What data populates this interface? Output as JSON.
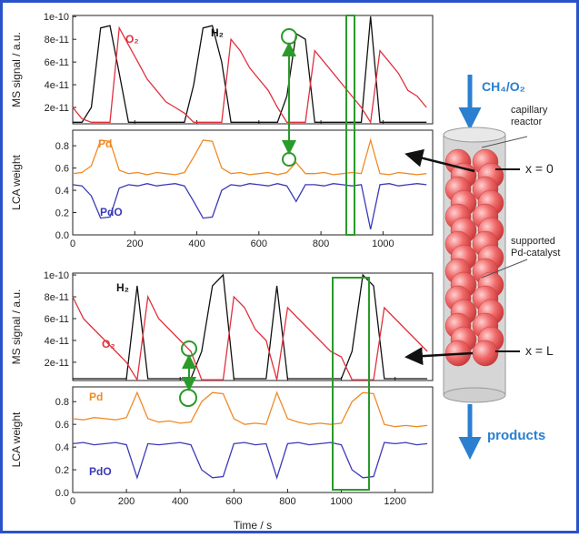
{
  "chart_data": [
    {
      "type": "line",
      "ylabel": "MS signal / a.u.",
      "xlim": [
        0,
        1160
      ],
      "ylim": [
        5.6e-12,
        1.01e-10
      ],
      "xticks": [
        0,
        200,
        400,
        600,
        800,
        1000
      ],
      "yticks": [
        2e-11,
        4e-11,
        6e-11,
        8e-11,
        1e-10
      ],
      "x": [
        0,
        30,
        60,
        90,
        120,
        150,
        180,
        210,
        240,
        270,
        300,
        330,
        360,
        390,
        420,
        450,
        480,
        510,
        540,
        570,
        600,
        630,
        660,
        690,
        720,
        750,
        780,
        810,
        840,
        870,
        900,
        930,
        960,
        990,
        1020,
        1050,
        1080,
        1110,
        1140
      ],
      "series": [
        {
          "name": "H₂",
          "color": "#111111",
          "values": [
            7e-12,
            7e-12,
            2e-11,
            9e-11,
            9.2e-11,
            5e-11,
            7e-12,
            7e-12,
            7e-12,
            7e-12,
            7e-12,
            7e-12,
            7e-12,
            4e-11,
            9e-11,
            9.2e-11,
            6e-11,
            7e-12,
            7e-12,
            7e-12,
            7e-12,
            7e-12,
            7e-12,
            3e-11,
            8.5e-11,
            8e-11,
            7e-12,
            7e-12,
            7e-12,
            7e-12,
            7e-12,
            7e-12,
            1e-10,
            7e-12,
            7e-12,
            7e-12,
            7e-12,
            7e-12,
            7e-12
          ]
        },
        {
          "name": "O₂",
          "color": "#e0303c",
          "values": [
            2e-11,
            1e-11,
            7e-12,
            7e-12,
            7e-12,
            9e-11,
            7.5e-11,
            6e-11,
            4.5e-11,
            3.5e-11,
            2.5e-11,
            2e-11,
            1.5e-11,
            7e-12,
            7e-12,
            7e-12,
            7e-12,
            8e-11,
            7e-11,
            5.5e-11,
            4.5e-11,
            3.5e-11,
            2e-11,
            7e-12,
            7e-12,
            7e-12,
            7e-11,
            6e-11,
            5e-11,
            4e-11,
            3e-11,
            2e-11,
            7e-12,
            7e-11,
            6e-11,
            5e-11,
            3.5e-11,
            3e-11,
            2e-11
          ]
        }
      ]
    },
    {
      "type": "line",
      "ylabel": "LCA weight",
      "xlim": [
        0,
        1160
      ],
      "ylim": [
        0,
        0.94
      ],
      "xticks": [
        0,
        200,
        400,
        600,
        800,
        1000
      ],
      "yticks": [
        {
          "value": 0,
          "label": "0.0"
        },
        0.2,
        0.4,
        0.6,
        0.8
      ],
      "x": [
        0,
        30,
        60,
        90,
        120,
        150,
        180,
        210,
        240,
        270,
        300,
        330,
        360,
        390,
        420,
        450,
        480,
        510,
        540,
        570,
        600,
        630,
        660,
        690,
        720,
        750,
        780,
        810,
        840,
        870,
        900,
        930,
        960,
        990,
        1020,
        1050,
        1080,
        1110,
        1140
      ],
      "series": [
        {
          "name": "Pd",
          "color": "#f08a24",
          "values": [
            0.55,
            0.56,
            0.62,
            0.85,
            0.84,
            0.58,
            0.55,
            0.56,
            0.54,
            0.56,
            0.55,
            0.54,
            0.56,
            0.7,
            0.85,
            0.84,
            0.6,
            0.55,
            0.56,
            0.54,
            0.55,
            0.56,
            0.54,
            0.56,
            0.65,
            0.55,
            0.55,
            0.56,
            0.54,
            0.55,
            0.56,
            0.55,
            0.85,
            0.55,
            0.54,
            0.56,
            0.55,
            0.54,
            0.55
          ]
        },
        {
          "name": "PdO",
          "color": "#3a3ab8",
          "values": [
            0.45,
            0.44,
            0.35,
            0.15,
            0.16,
            0.42,
            0.45,
            0.44,
            0.46,
            0.44,
            0.45,
            0.46,
            0.44,
            0.3,
            0.15,
            0.16,
            0.4,
            0.45,
            0.44,
            0.46,
            0.45,
            0.44,
            0.46,
            0.44,
            0.3,
            0.45,
            0.45,
            0.44,
            0.46,
            0.45,
            0.44,
            0.45,
            0.05,
            0.45,
            0.46,
            0.44,
            0.45,
            0.46,
            0.45
          ]
        }
      ]
    },
    {
      "type": "line",
      "ylabel": "MS signal / a.u.",
      "xlim": [
        0,
        1340
      ],
      "ylim": [
        3.3e-12,
        1.017e-10
      ],
      "xticks": [
        0,
        200,
        400,
        600,
        800,
        1000,
        1200
      ],
      "yticks": [
        2e-11,
        4e-11,
        6e-11,
        8e-11,
        1e-10
      ],
      "x": [
        0,
        40,
        80,
        120,
        160,
        200,
        240,
        280,
        320,
        360,
        400,
        440,
        480,
        520,
        560,
        600,
        640,
        680,
        720,
        760,
        800,
        840,
        880,
        920,
        960,
        1000,
        1040,
        1080,
        1120,
        1160,
        1200,
        1240,
        1280,
        1320
      ],
      "series": [
        {
          "name": "H₂",
          "color": "#111111",
          "values": [
            5e-12,
            5e-12,
            5e-12,
            5e-12,
            5e-12,
            5e-12,
            9e-11,
            5e-12,
            5e-12,
            5e-12,
            5e-12,
            5e-12,
            3e-11,
            9e-11,
            1e-10,
            5e-12,
            5e-12,
            5e-12,
            5e-12,
            9e-11,
            5e-12,
            5e-12,
            5e-12,
            5e-12,
            5e-12,
            5e-12,
            3e-11,
            1e-10,
            9e-11,
            5e-12,
            5e-12,
            5e-12,
            5e-12,
            5e-12
          ]
        },
        {
          "name": "O₂",
          "color": "#e0303c",
          "values": [
            8e-11,
            6e-11,
            5e-11,
            4e-11,
            3e-11,
            2e-11,
            4e-12,
            8e-11,
            6e-11,
            5e-11,
            4e-11,
            3e-11,
            4e-12,
            4e-12,
            4e-12,
            8e-11,
            7e-11,
            5e-11,
            4e-11,
            4e-12,
            7e-11,
            6e-11,
            5e-11,
            4e-11,
            3e-11,
            2.5e-11,
            4e-12,
            4e-12,
            4e-12,
            7e-11,
            6e-11,
            5e-11,
            4e-11,
            3e-11
          ]
        }
      ]
    },
    {
      "type": "line",
      "ylabel": "LCA weight",
      "xlabel": "Time / s",
      "xlim": [
        0,
        1340
      ],
      "ylim": [
        0,
        0.93
      ],
      "xticks": [
        0,
        200,
        400,
        600,
        800,
        1000,
        1200
      ],
      "yticks": [
        {
          "value": 0,
          "label": "0.0"
        },
        0.2,
        0.4,
        0.6,
        0.8
      ],
      "x": [
        0,
        40,
        80,
        120,
        160,
        200,
        240,
        280,
        320,
        360,
        400,
        440,
        480,
        520,
        560,
        600,
        640,
        680,
        720,
        760,
        800,
        840,
        880,
        920,
        960,
        1000,
        1040,
        1080,
        1120,
        1160,
        1200,
        1240,
        1280,
        1320
      ],
      "series": [
        {
          "name": "Pd",
          "color": "#f08a24",
          "values": [
            0.65,
            0.64,
            0.66,
            0.65,
            0.64,
            0.66,
            0.88,
            0.65,
            0.62,
            0.63,
            0.61,
            0.62,
            0.8,
            0.88,
            0.87,
            0.65,
            0.6,
            0.61,
            0.6,
            0.88,
            0.65,
            0.62,
            0.6,
            0.61,
            0.6,
            0.61,
            0.8,
            0.88,
            0.87,
            0.6,
            0.58,
            0.59,
            0.58,
            0.59
          ]
        },
        {
          "name": "PdO",
          "color": "#3a3ab8",
          "values": [
            0.43,
            0.44,
            0.42,
            0.43,
            0.44,
            0.42,
            0.13,
            0.43,
            0.42,
            0.43,
            0.44,
            0.42,
            0.2,
            0.13,
            0.14,
            0.43,
            0.44,
            0.42,
            0.43,
            0.13,
            0.43,
            0.44,
            0.42,
            0.43,
            0.44,
            0.42,
            0.2,
            0.13,
            0.14,
            0.44,
            0.43,
            0.44,
            0.42,
            0.43
          ]
        }
      ]
    }
  ],
  "diagram": {
    "feed": "CH₄/O₂",
    "reactor": [
      "capillary",
      "reactor"
    ],
    "inlet": "x = 0",
    "catalyst": [
      "supported",
      "Pd-catalyst"
    ],
    "outlet": "x = L",
    "products": "products"
  }
}
